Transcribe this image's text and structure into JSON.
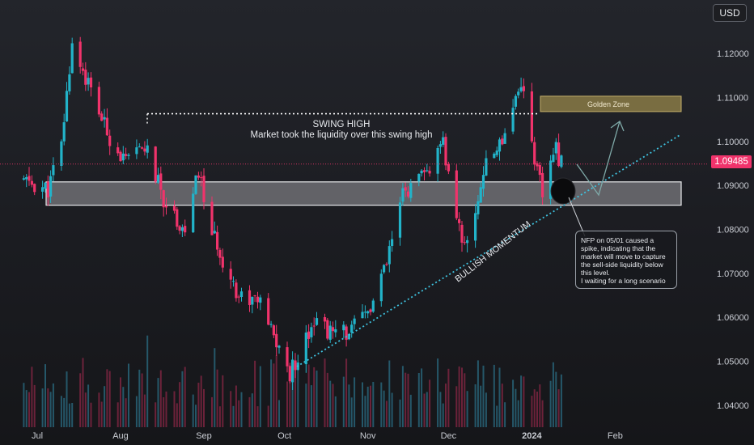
{
  "chart_data": {
    "type": "candlestick",
    "currency": "USD",
    "last_price": "1.09485",
    "ylim": [
      1.035,
      1.1285
    ],
    "y_ticks": [
      "1.12000",
      "1.11000",
      "1.10000",
      "1.09000",
      "1.08000",
      "1.07000",
      "1.06000",
      "1.05000",
      "1.04000"
    ],
    "x_ticks": [
      "Jul",
      "Aug",
      "Sep",
      "Oct",
      "Nov",
      "Dec",
      "2024",
      "Feb"
    ],
    "series": {
      "up_color": "#22b3c9",
      "down_color": "#f0336b",
      "volume_color": "#2b6e84",
      "volume_down_color": "#8a2745"
    },
    "close_path": [
      [
        "2023-06-26",
        1.091
      ],
      [
        "2023-07-05",
        1.089
      ],
      [
        "2023-07-10",
        1.099
      ],
      [
        "2023-07-14",
        1.1225
      ],
      [
        "2023-07-20",
        1.113
      ],
      [
        "2023-07-27",
        1.102
      ],
      [
        "2023-08-03",
        1.095
      ],
      [
        "2023-08-10",
        1.099
      ],
      [
        "2023-08-17",
        1.087
      ],
      [
        "2023-08-25",
        1.0795
      ],
      [
        "2023-08-30",
        1.093
      ],
      [
        "2023-09-04",
        1.079
      ],
      [
        "2023-09-14",
        1.065
      ],
      [
        "2023-09-21",
        1.064
      ],
      [
        "2023-10-03",
        1.047
      ],
      [
        "2023-10-12",
        1.06
      ],
      [
        "2023-10-19",
        1.056
      ],
      [
        "2023-10-26",
        1.057
      ],
      [
        "2023-11-02",
        1.062
      ],
      [
        "2023-11-08",
        1.072
      ],
      [
        "2023-11-14",
        1.088
      ],
      [
        "2023-11-22",
        1.092
      ],
      [
        "2023-11-29",
        1.099
      ],
      [
        "2023-12-05",
        1.08
      ],
      [
        "2023-12-08",
        1.076
      ],
      [
        "2023-12-14",
        1.093
      ],
      [
        "2023-12-21",
        1.101
      ],
      [
        "2023-12-28",
        1.114
      ],
      [
        "2024-01-03",
        1.093
      ],
      [
        "2024-01-05",
        1.088
      ],
      [
        "2024-01-10",
        1.098
      ],
      [
        "2024-01-12",
        1.095
      ]
    ],
    "annotations": {
      "swing_high_title": "SWING HIGH",
      "swing_high_text": "Market took the liquidity over this swing high",
      "golden_zone": "Golden Zone",
      "bullish_momentum": "BULLISH MOMENTUM",
      "note_lines": [
        "NFP on 05/01 caused a",
        "spike, indicating that the",
        "market will move to capture",
        "the sell-side liquidity below",
        "this level.",
        "I waiting for a long scenario"
      ]
    },
    "levels": {
      "swing_high": 1.1063,
      "demand_zone": [
        1.0855,
        1.0908
      ],
      "golden_zone": [
        1.1068,
        1.1103
      ]
    },
    "grid": false
  }
}
